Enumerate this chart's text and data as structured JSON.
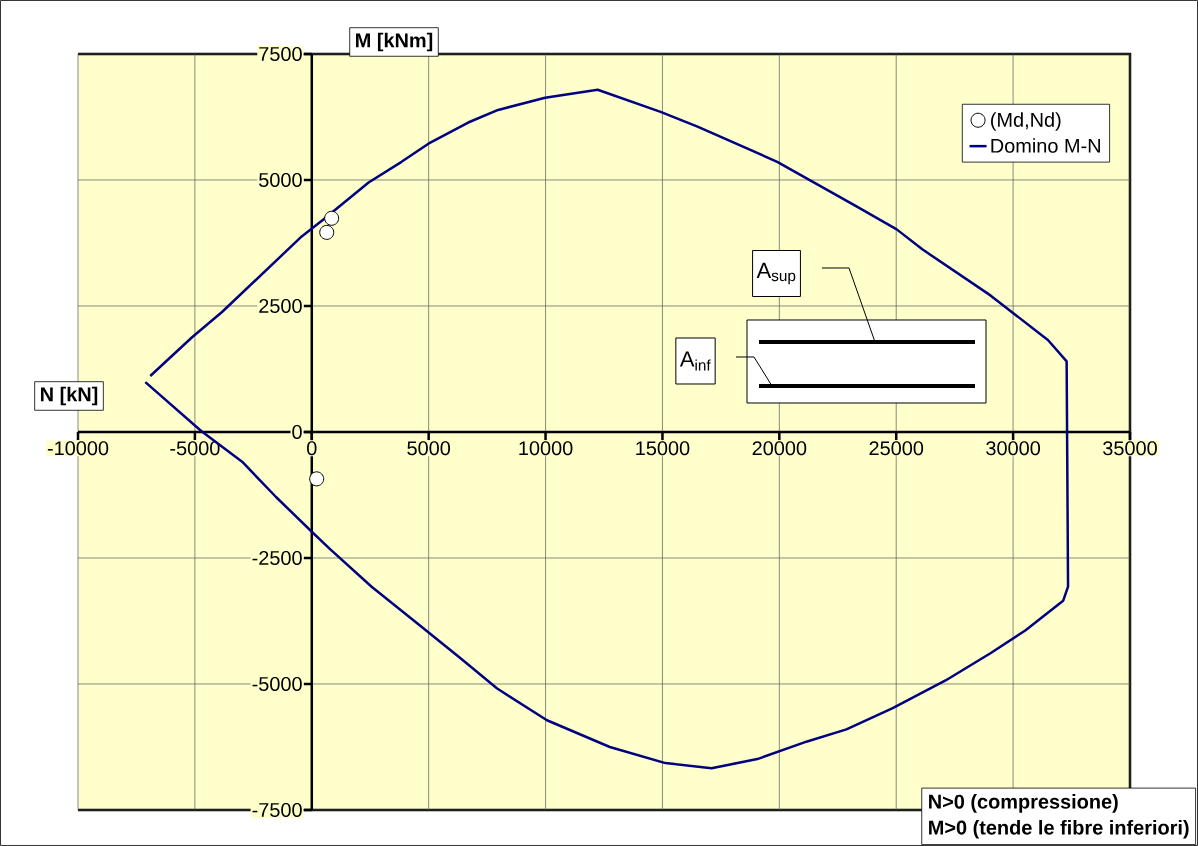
{
  "chart_data": {
    "type": "line",
    "xlabel": "N [kN]",
    "ylabel": "M [kNm]",
    "xlim": [
      -10000,
      35000
    ],
    "ylim": [
      -7500,
      7500
    ],
    "xticks": [
      -10000,
      -5000,
      0,
      5000,
      10000,
      15000,
      20000,
      25000,
      30000,
      35000
    ],
    "yticks": [
      -7500,
      -5000,
      -2500,
      0,
      2500,
      5000,
      7500
    ],
    "grid": true,
    "legend": "top right",
    "annotations": [
      "N>0 (compressione)",
      "M>0 (tende le fibre inferiori)",
      "A$_{sup}$",
      "A$_{inf}$"
    ],
    "series": [
      {
        "name": "(Md,Nd)",
        "type": "scatter",
        "marker": "circle",
        "color": "#ffffff",
        "x": [
          850,
          640,
          210
        ],
        "values": [
          4240,
          3960,
          -930
        ]
      },
      {
        "name": "Domino M-N",
        "type": "line",
        "marker": "none",
        "color": "#000080",
        "x": [
          -6910,
          -5120,
          -3840,
          -430,
          510,
          2430,
          3840,
          4990,
          6690,
          7970,
          9980,
          12230,
          14920,
          16500,
          19910,
          23320,
          25020,
          26130,
          29030,
          31500,
          32290,
          32350,
          32140,
          30520,
          29030,
          27110,
          24850,
          22870,
          21190,
          19060,
          17100,
          15130,
          12750,
          10060,
          7930,
          6310,
          4520,
          2560,
          770,
          0,
          -1530,
          -2980,
          -4730,
          -7120
        ],
        "values": [
          1110,
          1880,
          2380,
          3880,
          4220,
          4950,
          5360,
          5720,
          6140,
          6390,
          6630,
          6790,
          6350,
          6060,
          5360,
          4470,
          4020,
          3620,
          2710,
          1820,
          1400,
          -3070,
          -3350,
          -3940,
          -4390,
          -4930,
          -5480,
          -5900,
          -6140,
          -6490,
          -6670,
          -6570,
          -6250,
          -5720,
          -5090,
          -4470,
          -3800,
          -3070,
          -2320,
          -1980,
          -1290,
          -590,
          20,
          990
        ]
      }
    ]
  }
}
